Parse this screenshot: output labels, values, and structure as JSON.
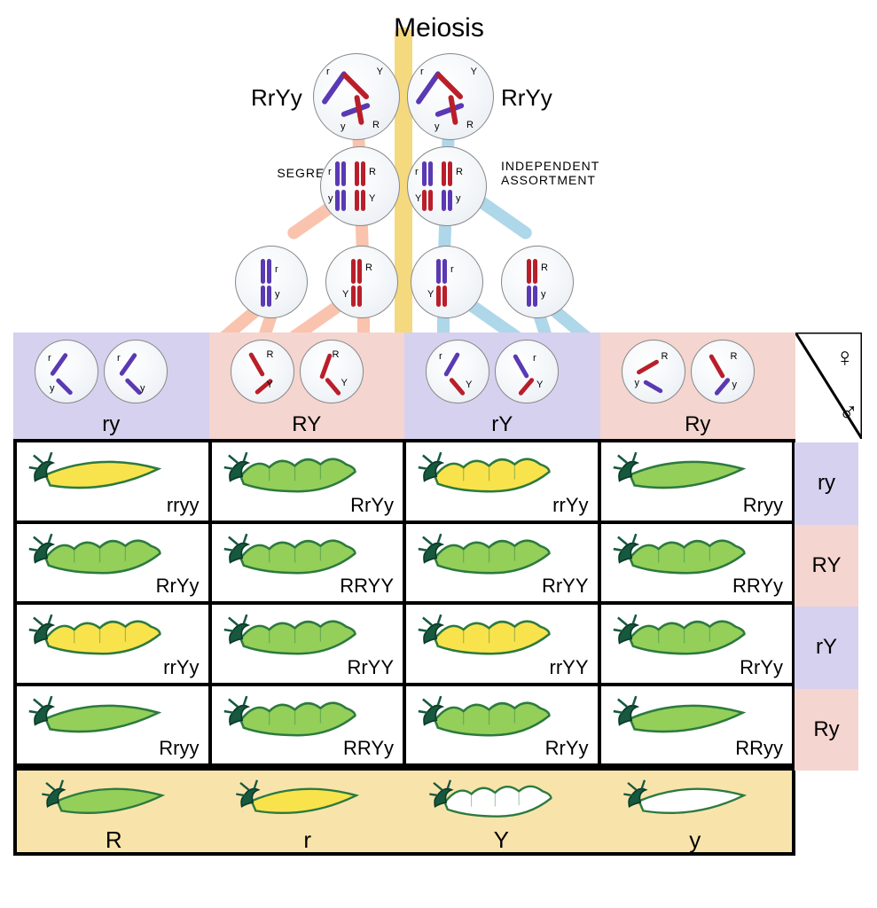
{
  "title": "Meiosis",
  "parent_genotype": "RrYy",
  "labels": {
    "segregation": "SEGREGATION",
    "independent1": "INDEPENDENT",
    "independent2": "ASSORTMENT",
    "female": "♀",
    "male": "♂"
  },
  "colors": {
    "purple_chrom": "#5a39b3",
    "red_chrom": "#b91f2a",
    "cell_border": "#888888",
    "yellow_band": "#f5d97e",
    "salmon_band": "#f6a98c",
    "blue_band": "#8bc6e0",
    "lavender": "#d6d1ee",
    "pink": "#f5d5cf",
    "legend_bg": "#f8e4ab",
    "pea_green_fill": "#94cf5a",
    "pea_green_stroke": "#2c7a3f",
    "pea_yellow_fill": "#f9e34c",
    "pea_white_fill": "#ffffff",
    "stem_dark": "#16593f"
  },
  "gamete_columns": [
    {
      "bg": "lav",
      "label": "ry"
    },
    {
      "bg": "pink",
      "label": "RY"
    },
    {
      "bg": "lav",
      "label": "rY"
    },
    {
      "bg": "pink",
      "label": "Ry"
    }
  ],
  "side_rows": [
    {
      "bg": "lav",
      "label": "ry"
    },
    {
      "bg": "pink",
      "label": "RY"
    },
    {
      "bg": "lav",
      "label": "rY"
    },
    {
      "bg": "pink",
      "label": "Ry"
    }
  ],
  "punnett": [
    [
      {
        "geno": "rryy",
        "pod": "yellow",
        "shape": "smooth"
      },
      {
        "geno": "RrYy",
        "pod": "green",
        "shape": "bumpy"
      },
      {
        "geno": "rrYy",
        "pod": "yellow",
        "shape": "bumpy"
      },
      {
        "geno": "Rryy",
        "pod": "green",
        "shape": "smooth"
      }
    ],
    [
      {
        "geno": "RrYy",
        "pod": "green",
        "shape": "bumpy"
      },
      {
        "geno": "RRYY",
        "pod": "green",
        "shape": "bumpy"
      },
      {
        "geno": "RrYY",
        "pod": "green",
        "shape": "bumpy"
      },
      {
        "geno": "RRYy",
        "pod": "green",
        "shape": "bumpy"
      }
    ],
    [
      {
        "geno": "rrYy",
        "pod": "yellow",
        "shape": "bumpy"
      },
      {
        "geno": "RrYY",
        "pod": "green",
        "shape": "bumpy"
      },
      {
        "geno": "rrYY",
        "pod": "yellow",
        "shape": "bumpy"
      },
      {
        "geno": "RrYy",
        "pod": "green",
        "shape": "bumpy"
      }
    ],
    [
      {
        "geno": "Rryy",
        "pod": "green",
        "shape": "smooth"
      },
      {
        "geno": "RRYy",
        "pod": "green",
        "shape": "bumpy"
      },
      {
        "geno": "RrYy",
        "pod": "green",
        "shape": "bumpy"
      },
      {
        "geno": "RRyy",
        "pod": "green",
        "shape": "smooth"
      }
    ]
  ],
  "legend": [
    {
      "label": "R",
      "pod": "green",
      "shape": "smooth"
    },
    {
      "label": "r",
      "pod": "yellow",
      "shape": "smooth"
    },
    {
      "label": "Y",
      "pod": "white",
      "shape": "bumpy"
    },
    {
      "label": "y",
      "pod": "white",
      "shape": "smooth"
    }
  ],
  "alleles": {
    "r": "r",
    "R": "R",
    "y": "y",
    "Y": "Y"
  }
}
